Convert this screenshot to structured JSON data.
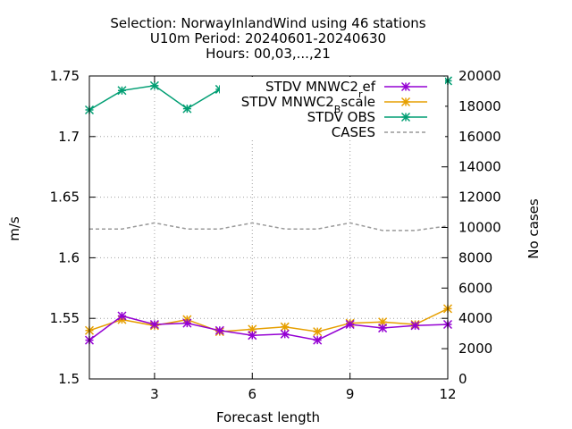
{
  "chart_data": {
    "type": "line",
    "title_lines": [
      "Selection: NorwayInlandWind using    46 stations",
      "U10m   Period: 20240601-20240630",
      "Hours: 00,03,...,21"
    ],
    "xlabel": "Forecast length",
    "ylabel": "m/s",
    "y2label": "No cases",
    "xlim": [
      1,
      12
    ],
    "ylim": [
      1.5,
      1.75
    ],
    "y2lim": [
      0,
      20000
    ],
    "x_ticks": [
      3,
      6,
      9,
      12
    ],
    "y_ticks": [
      1.5,
      1.55,
      1.6,
      1.65,
      1.7,
      1.75
    ],
    "y_tick_labels": [
      "1.5",
      "1.55",
      "1.6",
      "1.65",
      "1.7",
      "1.75"
    ],
    "y2_ticks": [
      0,
      2000,
      4000,
      6000,
      8000,
      10000,
      12000,
      14000,
      16000,
      18000,
      20000
    ],
    "grid": true,
    "legend_position": "top-right",
    "x": [
      1,
      2,
      3,
      4,
      5,
      6,
      7,
      8,
      9,
      10,
      11,
      12
    ],
    "series": [
      {
        "name": "STDV MNWC2_ref",
        "legend_main": "STDV MNWC2",
        "legend_sub": "r",
        "legend_tail": "ef",
        "color": "#9400d3",
        "axis": "y1",
        "marker": "star",
        "dashed": false,
        "values": [
          1.532,
          1.552,
          1.545,
          1.546,
          1.54,
          1.536,
          1.537,
          1.532,
          1.545,
          1.542,
          1.544,
          1.545
        ]
      },
      {
        "name": "STDV MNWC2_Bscale",
        "legend_main": "STDV MNWC2",
        "legend_sub": "B",
        "legend_tail": "scale",
        "color": "#e69f00",
        "axis": "y1",
        "marker": "star",
        "dashed": false,
        "values": [
          1.54,
          1.549,
          1.544,
          1.549,
          1.539,
          1.541,
          1.543,
          1.539,
          1.546,
          1.547,
          1.545,
          1.558
        ]
      },
      {
        "name": "STDV OBS",
        "legend_main": "STDV OBS",
        "legend_sub": "",
        "legend_tail": "",
        "color": "#009e73",
        "axis": "y1",
        "marker": "star",
        "dashed": false,
        "values": [
          1.722,
          1.738,
          1.742,
          1.723,
          1.739,
          1.742,
          1.723,
          1.742,
          1.744,
          1.725,
          1.743,
          1.746
        ]
      },
      {
        "name": "CASES",
        "legend_main": "CASES",
        "legend_sub": "",
        "legend_tail": "",
        "color": "#999999",
        "axis": "y2",
        "marker": "none",
        "dashed": true,
        "values": [
          9900,
          9900,
          10300,
          9900,
          9900,
          10300,
          9900,
          9900,
          10300,
          9800,
          9800,
          10100
        ]
      }
    ]
  }
}
